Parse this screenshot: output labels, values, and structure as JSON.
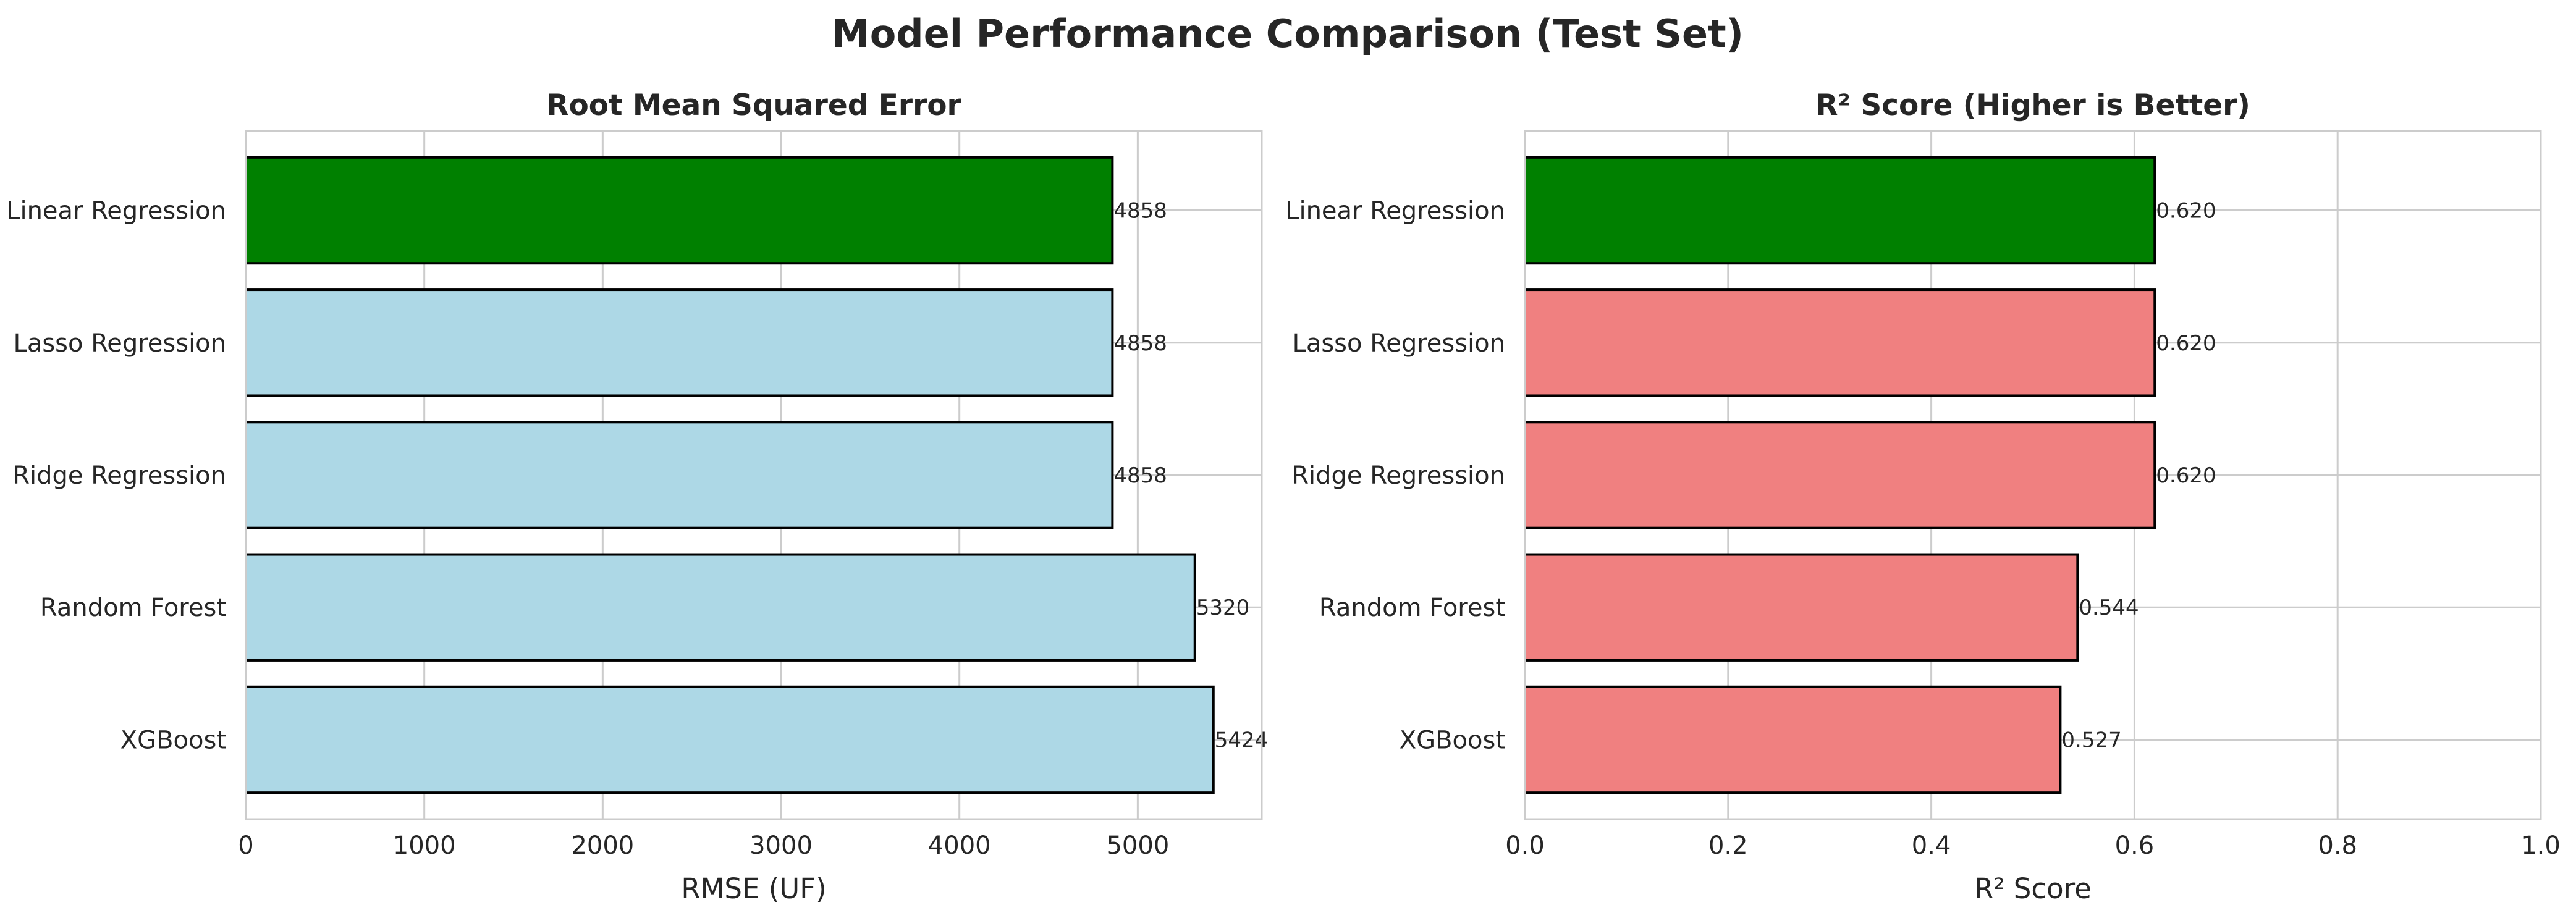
{
  "figure": {
    "title": "Model Performance Comparison (Test Set)"
  },
  "chart_data": [
    {
      "type": "bar",
      "orientation": "horizontal",
      "title": "Root Mean Squared Error",
      "xlabel": "RMSE (UF)",
      "ylabel": "",
      "categories": [
        "Linear Regression",
        "Lasso Regression",
        "Ridge Regression",
        "Random Forest",
        "XGBoost"
      ],
      "values": [
        4858,
        4858,
        4858,
        5320,
        5424
      ],
      "value_labels": [
        "4858",
        "4858",
        "4858",
        "5320",
        "5424"
      ],
      "bar_colors": [
        "#008000",
        "#add8e6",
        "#add8e6",
        "#add8e6",
        "#add8e6"
      ],
      "xlim": [
        0,
        5695
      ],
      "xticks": [
        0,
        1000,
        2000,
        3000,
        4000,
        5000
      ],
      "xtick_labels": [
        "0",
        "1000",
        "2000",
        "3000",
        "4000",
        "5000"
      ],
      "grid": true,
      "legend": "none"
    },
    {
      "type": "bar",
      "orientation": "horizontal",
      "title": "R² Score (Higher is Better)",
      "xlabel": "R² Score",
      "ylabel": "",
      "categories": [
        "Linear Regression",
        "Lasso Regression",
        "Ridge Regression",
        "Random Forest",
        "XGBoost"
      ],
      "values": [
        0.62,
        0.62,
        0.62,
        0.544,
        0.527
      ],
      "value_labels": [
        "0.620",
        "0.620",
        "0.620",
        "0.544",
        "0.527"
      ],
      "bar_colors": [
        "#008000",
        "#f08080",
        "#f08080",
        "#f08080",
        "#f08080"
      ],
      "xlim": [
        0,
        1
      ],
      "xticks": [
        0,
        0.2,
        0.4,
        0.6,
        0.8,
        1.0
      ],
      "xtick_labels": [
        "0.0",
        "0.2",
        "0.4",
        "0.6",
        "0.8",
        "1.0"
      ],
      "grid": true,
      "legend": "none"
    }
  ]
}
